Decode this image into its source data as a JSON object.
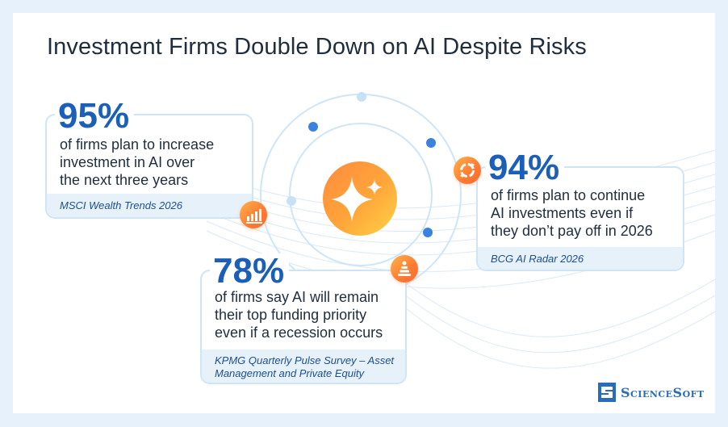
{
  "title": "Investment Firms Double Down on AI Despite Risks",
  "stats": [
    {
      "value": "95%",
      "lines": [
        "of firms plan to increase",
        "investment in AI over",
        "the next three years"
      ],
      "source_lines": [
        "MSCI Wealth Trends 2026"
      ],
      "icon": "bar-chart-icon"
    },
    {
      "value": "94%",
      "lines": [
        "of firms plan to continue",
        "AI investments even if",
        "they don’t pay off in 2026"
      ],
      "source_lines": [
        "BCG AI Radar 2026"
      ],
      "icon": "cycle-arrows-icon"
    },
    {
      "value": "78%",
      "lines": [
        "of firms say AI will remain",
        "their top funding priority",
        "even if a recession occurs"
      ],
      "source_lines": [
        "KPMG Quarterly Pulse Survey – Asset",
        "Management and Private Equity"
      ],
      "icon": "coin-stack-icon"
    }
  ],
  "center_icon": "ai-sparkle-icon",
  "logo": {
    "text": "ScienceSoft",
    "icon": "sciencesoft-logo-icon"
  },
  "colors": {
    "accent_blue": "#1b5fb8",
    "orange": "#ff7a33",
    "yellow": "#ffc53d"
  }
}
